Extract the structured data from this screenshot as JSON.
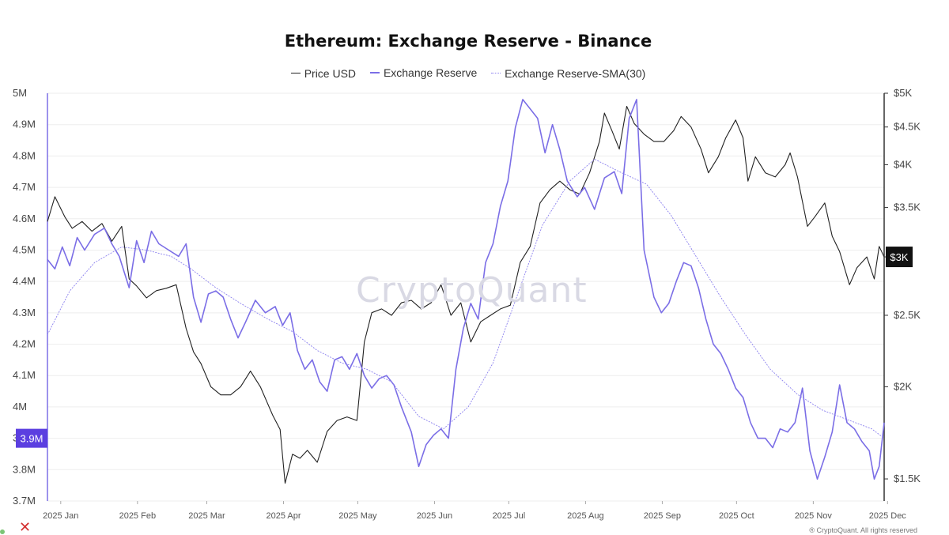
{
  "chart_data": {
    "type": "line",
    "title": "Ethereum: Exchange Reserve - Binance",
    "legend_position": "top-center",
    "grid": true,
    "x_range": [
      "2025-01-01",
      "2025-12-05"
    ],
    "x_ticks": [
      "2025 Jan",
      "2025 Feb",
      "2025 Mar",
      "2025 Apr",
      "2025 May",
      "2025 Jun",
      "2025 Jul",
      "2025 Aug",
      "2025 Sep",
      "2025 Oct",
      "2025 Nov",
      "2025 Dec"
    ],
    "x_tick_dates": [
      "2025-01-01",
      "2025-02-01",
      "2025-03-01",
      "2025-04-01",
      "2025-05-01",
      "2025-06-01",
      "2025-07-01",
      "2025-08-01",
      "2025-09-01",
      "2025-10-01",
      "2025-11-01",
      "2025-12-01"
    ],
    "left_axis": {
      "range": [
        3700000,
        5000000
      ],
      "ticks": [
        3700000,
        3800000,
        3900000,
        4000000,
        4100000,
        4200000,
        4300000,
        4400000,
        4500000,
        4600000,
        4700000,
        4800000,
        4900000,
        5000000
      ],
      "tick_labels": [
        "3.7M",
        "3.8M",
        "3.9M",
        "4M",
        "4.1M",
        "4.2M",
        "4.3M",
        "4.4M",
        "4.5M",
        "4.6M",
        "4.7M",
        "4.8M",
        "4.9M",
        "5M"
      ],
      "current_label": "3.9M",
      "current_value": 3900000
    },
    "right_axis": {
      "scale": "log",
      "range": [
        1400,
        5000
      ],
      "ticks": [
        1500,
        2000,
        2500,
        3000,
        3500,
        4000,
        4500,
        5000
      ],
      "tick_labels": [
        "$1.5K",
        "$2K",
        "$2.5K",
        "$3K",
        "$3.5K",
        "$4K",
        "$4.5K",
        "$5K"
      ],
      "current_label": "$3K",
      "current_value": 3000
    },
    "series": [
      {
        "name": "Price USD",
        "axis": "right",
        "color": "#222222",
        "style": "solid",
        "points": [
          [
            "2025-01-01",
            3350
          ],
          [
            "2025-01-04",
            3620
          ],
          [
            "2025-01-08",
            3400
          ],
          [
            "2025-01-11",
            3280
          ],
          [
            "2025-01-15",
            3350
          ],
          [
            "2025-01-19",
            3250
          ],
          [
            "2025-01-23",
            3330
          ],
          [
            "2025-01-27",
            3150
          ],
          [
            "2025-01-31",
            3300
          ],
          [
            "2025-02-03",
            2800
          ],
          [
            "2025-02-06",
            2740
          ],
          [
            "2025-02-10",
            2640
          ],
          [
            "2025-02-14",
            2700
          ],
          [
            "2025-02-18",
            2720
          ],
          [
            "2025-02-22",
            2750
          ],
          [
            "2025-02-26",
            2400
          ],
          [
            "2025-03-01",
            2230
          ],
          [
            "2025-03-04",
            2150
          ],
          [
            "2025-03-08",
            2000
          ],
          [
            "2025-03-12",
            1950
          ],
          [
            "2025-03-16",
            1950
          ],
          [
            "2025-03-20",
            2000
          ],
          [
            "2025-03-24",
            2100
          ],
          [
            "2025-03-28",
            2000
          ],
          [
            "2025-04-02",
            1830
          ],
          [
            "2025-04-05",
            1750
          ],
          [
            "2025-04-07",
            1480
          ],
          [
            "2025-04-10",
            1620
          ],
          [
            "2025-04-13",
            1600
          ],
          [
            "2025-04-16",
            1640
          ],
          [
            "2025-04-20",
            1580
          ],
          [
            "2025-04-24",
            1740
          ],
          [
            "2025-04-28",
            1800
          ],
          [
            "2025-05-02",
            1820
          ],
          [
            "2025-05-06",
            1800
          ],
          [
            "2025-05-09",
            2300
          ],
          [
            "2025-05-12",
            2520
          ],
          [
            "2025-05-16",
            2550
          ],
          [
            "2025-05-20",
            2500
          ],
          [
            "2025-05-24",
            2600
          ],
          [
            "2025-05-28",
            2620
          ],
          [
            "2025-06-01",
            2550
          ],
          [
            "2025-06-05",
            2600
          ],
          [
            "2025-06-09",
            2750
          ],
          [
            "2025-06-13",
            2500
          ],
          [
            "2025-06-17",
            2600
          ],
          [
            "2025-06-21",
            2300
          ],
          [
            "2025-06-25",
            2450
          ],
          [
            "2025-06-29",
            2500
          ],
          [
            "2025-07-03",
            2550
          ],
          [
            "2025-07-07",
            2580
          ],
          [
            "2025-07-11",
            2950
          ],
          [
            "2025-07-15",
            3100
          ],
          [
            "2025-07-19",
            3550
          ],
          [
            "2025-07-23",
            3700
          ],
          [
            "2025-07-27",
            3800
          ],
          [
            "2025-07-31",
            3700
          ],
          [
            "2025-08-04",
            3650
          ],
          [
            "2025-08-08",
            3900
          ],
          [
            "2025-08-12",
            4300
          ],
          [
            "2025-08-14",
            4700
          ],
          [
            "2025-08-17",
            4450
          ],
          [
            "2025-08-20",
            4200
          ],
          [
            "2025-08-23",
            4800
          ],
          [
            "2025-08-26",
            4550
          ],
          [
            "2025-08-30",
            4400
          ],
          [
            "2025-09-03",
            4300
          ],
          [
            "2025-09-07",
            4300
          ],
          [
            "2025-09-11",
            4450
          ],
          [
            "2025-09-14",
            4650
          ],
          [
            "2025-09-18",
            4500
          ],
          [
            "2025-09-22",
            4200
          ],
          [
            "2025-09-25",
            3900
          ],
          [
            "2025-09-29",
            4100
          ],
          [
            "2025-10-02",
            4350
          ],
          [
            "2025-10-06",
            4600
          ],
          [
            "2025-10-09",
            4350
          ],
          [
            "2025-10-11",
            3800
          ],
          [
            "2025-10-14",
            4100
          ],
          [
            "2025-10-18",
            3900
          ],
          [
            "2025-10-22",
            3850
          ],
          [
            "2025-10-26",
            4000
          ],
          [
            "2025-10-28",
            4150
          ],
          [
            "2025-10-31",
            3850
          ],
          [
            "2025-11-04",
            3300
          ],
          [
            "2025-11-07",
            3400
          ],
          [
            "2025-11-11",
            3550
          ],
          [
            "2025-11-14",
            3200
          ],
          [
            "2025-11-17",
            3050
          ],
          [
            "2025-11-21",
            2750
          ],
          [
            "2025-11-24",
            2900
          ],
          [
            "2025-11-28",
            3000
          ],
          [
            "2025-12-01",
            2800
          ],
          [
            "2025-12-03",
            3100
          ],
          [
            "2025-12-05",
            3000
          ]
        ]
      },
      {
        "name": "Exchange Reserve",
        "axis": "left",
        "color": "#7b6ee6",
        "style": "solid",
        "points": [
          [
            "2025-01-01",
            4.47
          ],
          [
            "2025-01-04",
            4.44
          ],
          [
            "2025-01-07",
            4.51
          ],
          [
            "2025-01-10",
            4.45
          ],
          [
            "2025-01-13",
            4.54
          ],
          [
            "2025-01-16",
            4.5
          ],
          [
            "2025-01-20",
            4.55
          ],
          [
            "2025-01-24",
            4.57
          ],
          [
            "2025-01-27",
            4.52
          ],
          [
            "2025-01-30",
            4.48
          ],
          [
            "2025-02-03",
            4.38
          ],
          [
            "2025-02-06",
            4.53
          ],
          [
            "2025-02-09",
            4.46
          ],
          [
            "2025-02-12",
            4.56
          ],
          [
            "2025-02-15",
            4.52
          ],
          [
            "2025-02-19",
            4.5
          ],
          [
            "2025-02-23",
            4.48
          ],
          [
            "2025-02-26",
            4.52
          ],
          [
            "2025-03-01",
            4.35
          ],
          [
            "2025-03-04",
            4.27
          ],
          [
            "2025-03-07",
            4.36
          ],
          [
            "2025-03-10",
            4.37
          ],
          [
            "2025-03-13",
            4.35
          ],
          [
            "2025-03-16",
            4.28
          ],
          [
            "2025-03-19",
            4.22
          ],
          [
            "2025-03-22",
            4.27
          ],
          [
            "2025-03-26",
            4.34
          ],
          [
            "2025-03-30",
            4.3
          ],
          [
            "2025-04-03",
            4.32
          ],
          [
            "2025-04-06",
            4.26
          ],
          [
            "2025-04-09",
            4.3
          ],
          [
            "2025-04-12",
            4.18
          ],
          [
            "2025-04-15",
            4.12
          ],
          [
            "2025-04-18",
            4.15
          ],
          [
            "2025-04-21",
            4.08
          ],
          [
            "2025-04-24",
            4.05
          ],
          [
            "2025-04-27",
            4.15
          ],
          [
            "2025-04-30",
            4.16
          ],
          [
            "2025-05-03",
            4.12
          ],
          [
            "2025-05-06",
            4.17
          ],
          [
            "2025-05-09",
            4.1
          ],
          [
            "2025-05-12",
            4.06
          ],
          [
            "2025-05-15",
            4.09
          ],
          [
            "2025-05-18",
            4.1
          ],
          [
            "2025-05-21",
            4.07
          ],
          [
            "2025-05-24",
            4.0
          ],
          [
            "2025-05-28",
            3.92
          ],
          [
            "2025-05-31",
            3.81
          ],
          [
            "2025-06-03",
            3.88
          ],
          [
            "2025-06-06",
            3.91
          ],
          [
            "2025-06-09",
            3.93
          ],
          [
            "2025-06-12",
            3.9
          ],
          [
            "2025-06-15",
            4.12
          ],
          [
            "2025-06-18",
            4.25
          ],
          [
            "2025-06-21",
            4.33
          ],
          [
            "2025-06-24",
            4.28
          ],
          [
            "2025-06-27",
            4.46
          ],
          [
            "2025-06-30",
            4.52
          ],
          [
            "2025-07-03",
            4.64
          ],
          [
            "2025-07-06",
            4.72
          ],
          [
            "2025-07-09",
            4.89
          ],
          [
            "2025-07-12",
            4.98
          ],
          [
            "2025-07-15",
            4.95
          ],
          [
            "2025-07-18",
            4.92
          ],
          [
            "2025-07-21",
            4.81
          ],
          [
            "2025-07-24",
            4.9
          ],
          [
            "2025-07-27",
            4.82
          ],
          [
            "2025-07-30",
            4.72
          ],
          [
            "2025-08-03",
            4.67
          ],
          [
            "2025-08-06",
            4.7
          ],
          [
            "2025-08-10",
            4.63
          ],
          [
            "2025-08-14",
            4.73
          ],
          [
            "2025-08-18",
            4.75
          ],
          [
            "2025-08-21",
            4.68
          ],
          [
            "2025-08-24",
            4.92
          ],
          [
            "2025-08-27",
            4.98
          ],
          [
            "2025-08-30",
            4.5
          ],
          [
            "2025-09-03",
            4.35
          ],
          [
            "2025-09-06",
            4.3
          ],
          [
            "2025-09-09",
            4.33
          ],
          [
            "2025-09-12",
            4.4
          ],
          [
            "2025-09-15",
            4.46
          ],
          [
            "2025-09-18",
            4.45
          ],
          [
            "2025-09-21",
            4.38
          ],
          [
            "2025-09-24",
            4.28
          ],
          [
            "2025-09-27",
            4.2
          ],
          [
            "2025-09-30",
            4.17
          ],
          [
            "2025-10-03",
            4.12
          ],
          [
            "2025-10-06",
            4.06
          ],
          [
            "2025-10-09",
            4.03
          ],
          [
            "2025-10-12",
            3.95
          ],
          [
            "2025-10-15",
            3.9
          ],
          [
            "2025-10-18",
            3.9
          ],
          [
            "2025-10-21",
            3.87
          ],
          [
            "2025-10-24",
            3.93
          ],
          [
            "2025-10-27",
            3.92
          ],
          [
            "2025-10-30",
            3.95
          ],
          [
            "2025-11-02",
            4.06
          ],
          [
            "2025-11-05",
            3.86
          ],
          [
            "2025-11-08",
            3.77
          ],
          [
            "2025-11-11",
            3.84
          ],
          [
            "2025-11-14",
            3.92
          ],
          [
            "2025-11-17",
            4.07
          ],
          [
            "2025-11-20",
            3.95
          ],
          [
            "2025-11-23",
            3.93
          ],
          [
            "2025-11-26",
            3.89
          ],
          [
            "2025-11-29",
            3.86
          ],
          [
            "2025-12-01",
            3.77
          ],
          [
            "2025-12-03",
            3.81
          ],
          [
            "2025-12-05",
            3.95
          ]
        ]
      },
      {
        "name": "Exchange Reserve-SMA(30)",
        "axis": "left",
        "color": "#8b80ee",
        "style": "thin",
        "points": [
          [
            "2025-01-01",
            4.23
          ],
          [
            "2025-01-10",
            4.37
          ],
          [
            "2025-01-20",
            4.46
          ],
          [
            "2025-01-31",
            4.51
          ],
          [
            "2025-02-10",
            4.5
          ],
          [
            "2025-02-20",
            4.48
          ],
          [
            "2025-02-28",
            4.44
          ],
          [
            "2025-03-10",
            4.38
          ],
          [
            "2025-03-20",
            4.33
          ],
          [
            "2025-03-31",
            4.28
          ],
          [
            "2025-04-10",
            4.24
          ],
          [
            "2025-04-20",
            4.18
          ],
          [
            "2025-04-30",
            4.14
          ],
          [
            "2025-05-10",
            4.12
          ],
          [
            "2025-05-20",
            4.08
          ],
          [
            "2025-05-31",
            3.97
          ],
          [
            "2025-06-10",
            3.93
          ],
          [
            "2025-06-20",
            4.0
          ],
          [
            "2025-06-30",
            4.14
          ],
          [
            "2025-07-10",
            4.36
          ],
          [
            "2025-07-20",
            4.58
          ],
          [
            "2025-07-31",
            4.72
          ],
          [
            "2025-08-10",
            4.79
          ],
          [
            "2025-08-20",
            4.75
          ],
          [
            "2025-08-31",
            4.71
          ],
          [
            "2025-09-10",
            4.61
          ],
          [
            "2025-09-20",
            4.48
          ],
          [
            "2025-09-30",
            4.35
          ],
          [
            "2025-10-10",
            4.23
          ],
          [
            "2025-10-20",
            4.12
          ],
          [
            "2025-10-31",
            4.04
          ],
          [
            "2025-11-10",
            3.99
          ],
          [
            "2025-11-20",
            3.96
          ],
          [
            "2025-11-30",
            3.93
          ],
          [
            "2025-12-05",
            3.9
          ]
        ]
      }
    ]
  },
  "watermark": "CryptoQuant",
  "footer": "® CryptoQuant. All rights reserved"
}
